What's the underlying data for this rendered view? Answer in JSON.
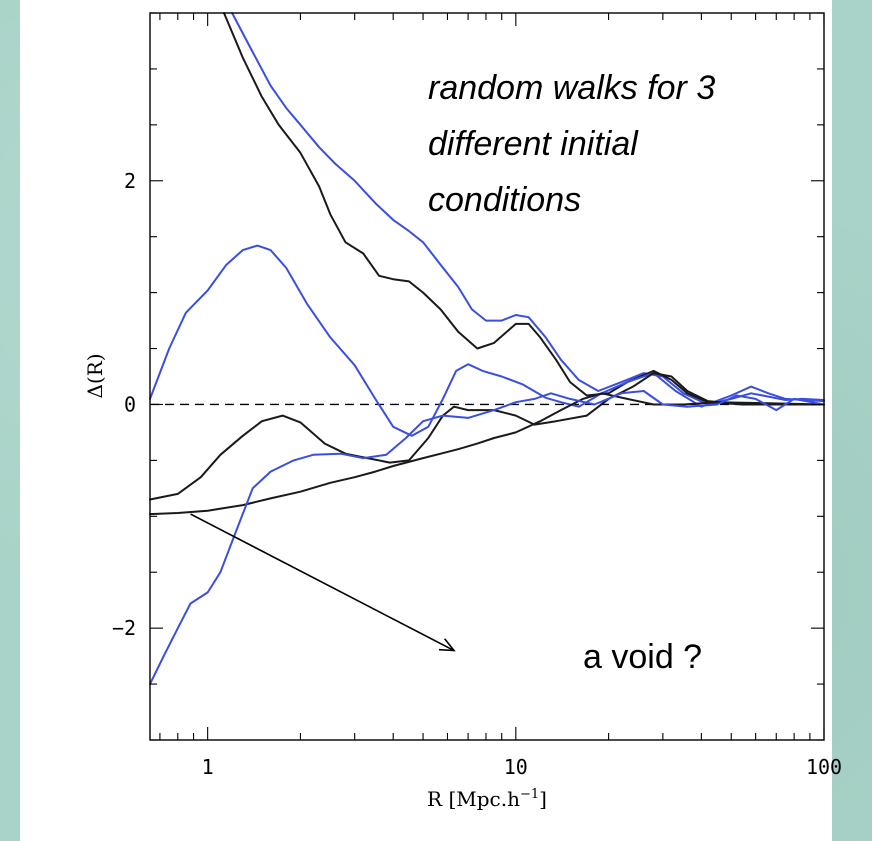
{
  "chart_data": {
    "type": "line",
    "title": "",
    "xlabel": "R [Mpc.h",
    "xlabel_sup": "−1",
    "xlabel_close": "]",
    "ylabel": "Δ(R)",
    "xscale": "log",
    "xlim": [
      0.65,
      100
    ],
    "ylim": [
      -3.0,
      3.5
    ],
    "x_ticklabels": [
      {
        "x": 1,
        "label": "1"
      },
      {
        "x": 10,
        "label": "10"
      },
      {
        "x": 100,
        "label": "100"
      }
    ],
    "y_ticklabels": [
      {
        "y": -2,
        "label": "−2"
      },
      {
        "y": 0,
        "label": "0"
      },
      {
        "y": 2,
        "label": "2"
      }
    ],
    "reference_line": {
      "y": 0,
      "style": "dashed"
    },
    "annotations": {
      "main_note": [
        "random walks for 3",
        "different initial",
        "conditions"
      ],
      "arrow_note": "a void ?",
      "arrow_from": {
        "x": 0.88,
        "y": -0.98
      },
      "arrow_to": {
        "x": 6.3,
        "y": -2.2
      }
    },
    "colors": {
      "black": "#1a1a1a",
      "blue": "#3a4fe0"
    },
    "series": [
      {
        "color": "blue",
        "points": [
          [
            1.2,
            3.5
          ],
          [
            1.4,
            3.15
          ],
          [
            1.6,
            2.85
          ],
          [
            1.8,
            2.65
          ],
          [
            2.0,
            2.5
          ],
          [
            2.3,
            2.3
          ],
          [
            2.6,
            2.15
          ],
          [
            3.0,
            2.0
          ],
          [
            3.5,
            1.8
          ],
          [
            4.0,
            1.65
          ],
          [
            4.5,
            1.55
          ],
          [
            5.0,
            1.45
          ],
          [
            5.7,
            1.25
          ],
          [
            6.5,
            1.05
          ],
          [
            7.2,
            0.85
          ],
          [
            8.0,
            0.75
          ],
          [
            9.0,
            0.75
          ],
          [
            10.0,
            0.8
          ],
          [
            11.0,
            0.78
          ],
          [
            12.5,
            0.6
          ],
          [
            14.0,
            0.4
          ],
          [
            16.0,
            0.22
          ],
          [
            18.5,
            0.12
          ],
          [
            22.0,
            0.2
          ],
          [
            26.0,
            0.28
          ],
          [
            30.0,
            0.25
          ],
          [
            35.0,
            0.1
          ],
          [
            42.0,
            0.0
          ],
          [
            50.0,
            0.05
          ],
          [
            58.0,
            0.1
          ],
          [
            66.0,
            0.07
          ],
          [
            75.0,
            0.04
          ],
          [
            85.0,
            0.05
          ],
          [
            100.0,
            0.04
          ]
        ]
      },
      {
        "color": "black",
        "points": [
          [
            1.13,
            3.5
          ],
          [
            1.3,
            3.1
          ],
          [
            1.5,
            2.75
          ],
          [
            1.7,
            2.5
          ],
          [
            2.0,
            2.25
          ],
          [
            2.3,
            1.95
          ],
          [
            2.5,
            1.7
          ],
          [
            2.8,
            1.45
          ],
          [
            3.2,
            1.35
          ],
          [
            3.6,
            1.15
          ],
          [
            4.0,
            1.12
          ],
          [
            4.5,
            1.1
          ],
          [
            5.0,
            1.0
          ],
          [
            5.7,
            0.85
          ],
          [
            6.5,
            0.65
          ],
          [
            7.5,
            0.5
          ],
          [
            8.5,
            0.55
          ],
          [
            10.0,
            0.72
          ],
          [
            11.0,
            0.72
          ],
          [
            12.0,
            0.6
          ],
          [
            13.5,
            0.4
          ],
          [
            15.0,
            0.2
          ],
          [
            17.0,
            0.08
          ],
          [
            20.0,
            0.1
          ],
          [
            23.0,
            0.2
          ],
          [
            28.0,
            0.3
          ],
          [
            32.0,
            0.22
          ],
          [
            36.0,
            0.1
          ],
          [
            42.0,
            0.02
          ],
          [
            55.0,
            0.0
          ],
          [
            100.0,
            0.0
          ]
        ]
      },
      {
        "color": "blue",
        "points": [
          [
            0.65,
            0.05
          ],
          [
            0.75,
            0.5
          ],
          [
            0.85,
            0.82
          ],
          [
            1.0,
            1.02
          ],
          [
            1.15,
            1.25
          ],
          [
            1.3,
            1.38
          ],
          [
            1.45,
            1.42
          ],
          [
            1.6,
            1.38
          ],
          [
            1.8,
            1.22
          ],
          [
            2.1,
            0.9
          ],
          [
            2.5,
            0.6
          ],
          [
            3.0,
            0.35
          ],
          [
            3.5,
            0.05
          ],
          [
            4.0,
            -0.2
          ],
          [
            4.6,
            -0.28
          ],
          [
            5.2,
            -0.2
          ],
          [
            5.8,
            0.05
          ],
          [
            6.4,
            0.3
          ],
          [
            7.0,
            0.36
          ],
          [
            7.8,
            0.3
          ],
          [
            9.0,
            0.25
          ],
          [
            10.5,
            0.18
          ],
          [
            12.5,
            0.06
          ],
          [
            14.0,
            0.02
          ],
          [
            16.0,
            -0.02
          ],
          [
            19.0,
            0.1
          ],
          [
            23.0,
            0.2
          ],
          [
            28.0,
            0.28
          ],
          [
            33.0,
            0.12
          ],
          [
            40.0,
            -0.02
          ],
          [
            50.0,
            0.08
          ],
          [
            58.0,
            0.16
          ],
          [
            66.0,
            0.1
          ],
          [
            75.0,
            0.05
          ],
          [
            100.0,
            0.03
          ]
        ]
      },
      {
        "color": "black",
        "points": [
          [
            0.65,
            -0.85
          ],
          [
            0.8,
            -0.8
          ],
          [
            0.95,
            -0.65
          ],
          [
            1.1,
            -0.45
          ],
          [
            1.3,
            -0.28
          ],
          [
            1.5,
            -0.15
          ],
          [
            1.75,
            -0.1
          ],
          [
            2.0,
            -0.16
          ],
          [
            2.4,
            -0.35
          ],
          [
            2.8,
            -0.44
          ],
          [
            3.3,
            -0.48
          ],
          [
            3.9,
            -0.52
          ],
          [
            4.5,
            -0.5
          ],
          [
            5.2,
            -0.3
          ],
          [
            5.8,
            -0.1
          ],
          [
            6.3,
            -0.02
          ],
          [
            7.0,
            -0.05
          ],
          [
            8.5,
            -0.05
          ],
          [
            10.0,
            -0.1
          ],
          [
            11.5,
            -0.18
          ],
          [
            13.5,
            -0.15
          ],
          [
            17.0,
            -0.1
          ],
          [
            20.0,
            0.05
          ],
          [
            24.0,
            0.16
          ],
          [
            28.0,
            0.28
          ],
          [
            32.0,
            0.25
          ],
          [
            36.0,
            0.12
          ],
          [
            42.0,
            0.03
          ],
          [
            55.0,
            0.0
          ],
          [
            100.0,
            0.0
          ]
        ]
      },
      {
        "color": "black",
        "points": [
          [
            0.65,
            -0.98
          ],
          [
            0.8,
            -0.97
          ],
          [
            1.0,
            -0.95
          ],
          [
            1.3,
            -0.9
          ],
          [
            1.6,
            -0.84
          ],
          [
            2.0,
            -0.78
          ],
          [
            2.5,
            -0.7
          ],
          [
            3.0,
            -0.65
          ],
          [
            3.5,
            -0.6
          ],
          [
            4.0,
            -0.55
          ],
          [
            5.0,
            -0.48
          ],
          [
            5.7,
            -0.44
          ],
          [
            6.5,
            -0.4
          ],
          [
            7.5,
            -0.35
          ],
          [
            8.5,
            -0.3
          ],
          [
            10.0,
            -0.25
          ],
          [
            12.0,
            -0.15
          ],
          [
            14.0,
            -0.05
          ],
          [
            16.5,
            0.05
          ],
          [
            19.0,
            0.1
          ],
          [
            23.0,
            0.05
          ],
          [
            28.0,
            0.0
          ],
          [
            35.0,
            0.0
          ],
          [
            45.0,
            0.02
          ],
          [
            100.0,
            0.0
          ]
        ]
      },
      {
        "color": "blue",
        "points": [
          [
            0.65,
            -2.5
          ],
          [
            0.72,
            -2.25
          ],
          [
            0.8,
            -2.0
          ],
          [
            0.88,
            -1.78
          ],
          [
            1.0,
            -1.68
          ],
          [
            1.1,
            -1.5
          ],
          [
            1.25,
            -1.1
          ],
          [
            1.4,
            -0.75
          ],
          [
            1.6,
            -0.6
          ],
          [
            1.9,
            -0.5
          ],
          [
            2.2,
            -0.45
          ],
          [
            2.7,
            -0.44
          ],
          [
            3.2,
            -0.48
          ],
          [
            3.8,
            -0.45
          ],
          [
            4.4,
            -0.3
          ],
          [
            5.0,
            -0.15
          ],
          [
            5.8,
            -0.1
          ],
          [
            7.0,
            -0.12
          ],
          [
            8.5,
            -0.05
          ],
          [
            10.0,
            0.02
          ],
          [
            11.5,
            0.05
          ],
          [
            13.0,
            0.1
          ],
          [
            15.0,
            0.05
          ],
          [
            18.0,
            0.0
          ],
          [
            22.0,
            0.1
          ],
          [
            26.0,
            0.12
          ],
          [
            30.0,
            0.0
          ],
          [
            36.0,
            -0.02
          ],
          [
            45.0,
            0.0
          ],
          [
            52.0,
            0.08
          ],
          [
            60.0,
            0.05
          ],
          [
            70.0,
            -0.05
          ],
          [
            80.0,
            0.05
          ],
          [
            100.0,
            0.0
          ]
        ]
      }
    ]
  }
}
